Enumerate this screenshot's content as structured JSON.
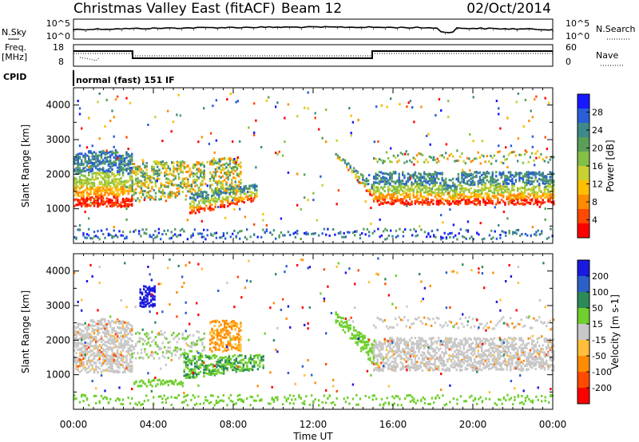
{
  "header": {
    "title_left": "Christmas Valley East (fitACF)",
    "title_beam": "Beam 12",
    "date": "02/Oct/2014"
  },
  "panels": {
    "sky": {
      "left_label": "N.Sky",
      "right_label": "N.Search",
      "left_ticks": [
        "10^5",
        "10^0"
      ],
      "right_ticks": [
        "10^5",
        "10^0"
      ]
    },
    "freq": {
      "left_label_1": "Freq.",
      "left_label_2": "[MHz]",
      "right_label": "Nave",
      "left_ticks": [
        "18",
        "8"
      ],
      "right_ticks": [
        "60",
        "0"
      ]
    },
    "cpid": {
      "label": "CPID",
      "mode_text": "normal (fast) 151 IF"
    }
  },
  "chart_data": [
    {
      "type": "heatmap",
      "name": "power",
      "ylabel": "Slant Range [km]",
      "yticks": [
        "1000",
        "2000",
        "3000",
        "4000"
      ],
      "ylim": [
        0,
        4500
      ],
      "colorbar": {
        "label": "Power [dB]",
        "ticks": [
          "4",
          "8",
          "12",
          "16",
          "20",
          "24",
          "28"
        ],
        "colors": [
          "#1919ff",
          "#2a5fd8",
          "#3e8a8a",
          "#5a9e5a",
          "#84c046",
          "#c8d032",
          "#ffbf00",
          "#ff8c00",
          "#ff4a00",
          "#ff0000"
        ]
      }
    },
    {
      "type": "heatmap",
      "name": "velocity",
      "ylabel": "Slant Range [km]",
      "yticks": [
        "1000",
        "2000",
        "3000",
        "4000"
      ],
      "ylim": [
        0,
        4500
      ],
      "colorbar": {
        "label": "Velocity [m s-1]",
        "ticks": [
          "200",
          "100",
          "50",
          "15",
          "-15",
          "-50",
          "-100",
          "-200"
        ],
        "colors": [
          "#1a1adf",
          "#2d5fc8",
          "#2c8a5a",
          "#6fcf2e",
          "#c8c8c8",
          "#ffbf3a",
          "#ff8c00",
          "#ff4a00",
          "#ff0000"
        ]
      }
    }
  ],
  "xaxis": {
    "ticks": [
      "00:00",
      "04:00",
      "08:00",
      "12:00",
      "16:00",
      "20:00",
      "00:00"
    ],
    "label": "Time UT"
  }
}
